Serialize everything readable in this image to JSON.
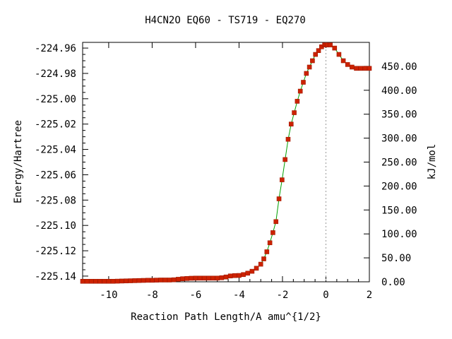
{
  "chart_data": {
    "type": "line",
    "title": "H4CN2O   EQ60 - TS719 - EQ270",
    "xlabel": "Reaction Path Length/A amu^{1/2}",
    "ylabel": "Energy/Hartree",
    "y2label": "kJ/mol",
    "xlim": [
      -11.2,
      2
    ],
    "ylim": [
      -225.1445,
      -224.9555
    ],
    "y2lim": [
      0,
      500
    ],
    "x_ticks": [
      "-10",
      "-8",
      "-6",
      "-4",
      "-2",
      "0",
      "2"
    ],
    "y_ticks": [
      "-224.96",
      "-224.98",
      "-225.00",
      "-225.02",
      "-225.04",
      "-225.06",
      "-225.08",
      "-225.10",
      "-225.12",
      "-225.14"
    ],
    "y2_ticks": [
      "0.00",
      "50.00",
      "100.00",
      "150.00",
      "200.00",
      "250.00",
      "300.00",
      "350.00",
      "400.00",
      "450.00"
    ],
    "ts_marker_x": 0,
    "line_color": "#00a000",
    "point_color": "#cc2200",
    "marker_fill": "#cc2200",
    "series": [
      {
        "x": [
          -11.2,
          -11.0,
          -10.8,
          -10.6,
          -10.4,
          -10.2,
          -10.0,
          -9.8,
          -9.6,
          -9.4,
          -9.2,
          -9.0,
          -8.8,
          -8.6,
          -8.4,
          -8.2,
          -8.0,
          -7.8,
          -7.6,
          -7.4,
          -7.2,
          -7.0,
          -6.8,
          -6.6,
          -6.4,
          -6.2,
          -6.0,
          -5.8,
          -5.6,
          -5.4,
          -5.2,
          -5.0,
          -4.8,
          -4.6,
          -4.4,
          -4.2,
          -4.0,
          -3.8,
          -3.6,
          -3.4,
          -3.2,
          -3.0,
          -2.86,
          -2.72,
          -2.58,
          -2.44,
          -2.3,
          -2.16,
          -2.02,
          -1.88,
          -1.74,
          -1.6,
          -1.46,
          -1.32,
          -1.18,
          -1.04,
          -0.9,
          -0.76,
          -0.62,
          -0.48,
          -0.34,
          -0.2,
          -0.06,
          0.0,
          0.06,
          0.2,
          0.4,
          0.6,
          0.8,
          1.0,
          1.2,
          1.4,
          1.6,
          1.8,
          2.0
        ],
        "y": [
          -225.1441,
          -225.1441,
          -225.1441,
          -225.1441,
          -225.1441,
          -225.1441,
          -225.1441,
          -225.1441,
          -225.144,
          -225.1439,
          -225.1438,
          -225.1437,
          -225.1436,
          -225.1435,
          -225.1434,
          -225.1433,
          -225.1433,
          -225.1432,
          -225.1431,
          -225.1431,
          -225.1431,
          -225.1429,
          -225.1425,
          -225.1421,
          -225.1419,
          -225.1417,
          -225.1416,
          -225.1416,
          -225.1416,
          -225.1416,
          -225.1416,
          -225.1416,
          -225.1413,
          -225.1407,
          -225.1399,
          -225.1396,
          -225.1395,
          -225.1388,
          -225.1377,
          -225.1362,
          -225.1338,
          -225.1306,
          -225.1264,
          -225.1208,
          -225.1137,
          -225.1057,
          -225.097,
          -225.079,
          -225.064,
          -225.048,
          -225.032,
          -225.02,
          -225.011,
          -225.002,
          -224.994,
          -224.987,
          -224.98,
          -224.975,
          -224.97,
          -224.965,
          -224.962,
          -224.959,
          -224.9575,
          -224.9575,
          -224.9575,
          -224.9575,
          -224.96,
          -224.965,
          -224.97,
          -224.973,
          -224.975,
          -224.976,
          -224.976,
          -224.976,
          -224.976
        ]
      }
    ]
  }
}
